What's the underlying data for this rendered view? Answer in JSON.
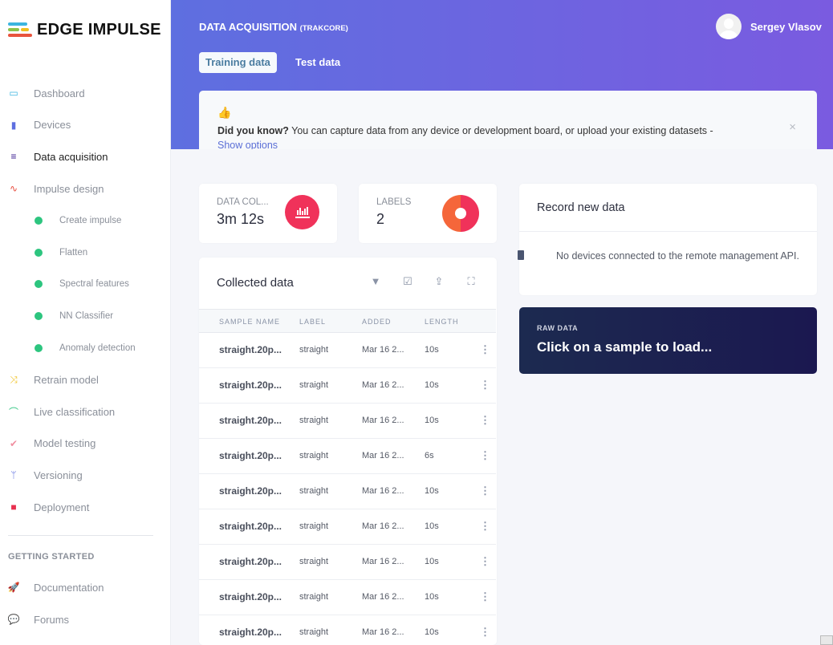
{
  "brand": {
    "name": "EDGE IMPULSE"
  },
  "sidebar": {
    "items": [
      {
        "label": "Dashboard",
        "icon": "monitor-icon",
        "color": "#3bb5e0"
      },
      {
        "label": "Devices",
        "icon": "chip-icon",
        "color": "#5e6fe0"
      },
      {
        "label": "Data acquisition",
        "icon": "database-icon",
        "color": "#3a1c8f",
        "active": true
      },
      {
        "label": "Impulse design",
        "icon": "pulse-icon",
        "color": "#e84c3d"
      },
      {
        "label": "Create impulse",
        "sub": true
      },
      {
        "label": "Flatten",
        "sub": true
      },
      {
        "label": "Spectral features",
        "sub": true
      },
      {
        "label": "NN Classifier",
        "sub": true
      },
      {
        "label": "Anomaly detection",
        "sub": true
      },
      {
        "label": "Retrain model",
        "icon": "shuffle-icon",
        "color": "#f0c020"
      },
      {
        "label": "Live classification",
        "icon": "bezier-icon",
        "color": "#2dc57f"
      },
      {
        "label": "Model testing",
        "icon": "clipboard-check-icon",
        "color": "#f08fa0"
      },
      {
        "label": "Versioning",
        "icon": "branch-icon",
        "color": "#5e6fe0"
      },
      {
        "label": "Deployment",
        "icon": "cube-icon",
        "color": "#e8304f"
      }
    ],
    "section_title": "GETTING STARTED",
    "links": [
      {
        "label": "Documentation",
        "icon": "rocket-icon"
      },
      {
        "label": "Forums",
        "icon": "comments-icon"
      }
    ]
  },
  "header": {
    "title": "DATA ACQUISITION",
    "project": "(TRAKCORE)",
    "user": "Sergey Vlasov",
    "tabs": [
      {
        "label": "Training data",
        "active": true
      },
      {
        "label": "Test data"
      }
    ]
  },
  "banner": {
    "bold": "Did you know?",
    "text": " You can capture data from any device or development board, or upload your existing datasets -",
    "link": "Show options",
    "close": "×"
  },
  "stats": {
    "data_label": "DATA COL...",
    "data_value": "3m 12s",
    "labels_label": "LABELS",
    "labels_value": "2",
    "label_colors": [
      "#f5663a",
      "#f0325a"
    ]
  },
  "collected": {
    "title": "Collected data",
    "tools": [
      "filter-icon",
      "check-square-icon",
      "upload-icon",
      "expand-icon"
    ],
    "columns": [
      "SAMPLE NAME",
      "LABEL",
      "ADDED",
      "LENGTH"
    ],
    "rows": [
      {
        "name": "straight.20p...",
        "label": "straight",
        "added": "Mar 16 2...",
        "length": "10s"
      },
      {
        "name": "straight.20p...",
        "label": "straight",
        "added": "Mar 16 2...",
        "length": "10s"
      },
      {
        "name": "straight.20p...",
        "label": "straight",
        "added": "Mar 16 2...",
        "length": "10s"
      },
      {
        "name": "straight.20p...",
        "label": "straight",
        "added": "Mar 16 2...",
        "length": "6s"
      },
      {
        "name": "straight.20p...",
        "label": "straight",
        "added": "Mar 16 2...",
        "length": "10s"
      },
      {
        "name": "straight.20p...",
        "label": "straight",
        "added": "Mar 16 2...",
        "length": "10s"
      },
      {
        "name": "straight.20p...",
        "label": "straight",
        "added": "Mar 16 2...",
        "length": "10s"
      },
      {
        "name": "straight.20p...",
        "label": "straight",
        "added": "Mar 16 2...",
        "length": "10s"
      },
      {
        "name": "straight.20p...",
        "label": "straight",
        "added": "Mar 16 2...",
        "length": "10s"
      }
    ]
  },
  "record": {
    "title": "Record new data",
    "message": "No devices connected to the remote management API."
  },
  "raw": {
    "label": "RAW DATA",
    "message": "Click on a sample to load..."
  }
}
